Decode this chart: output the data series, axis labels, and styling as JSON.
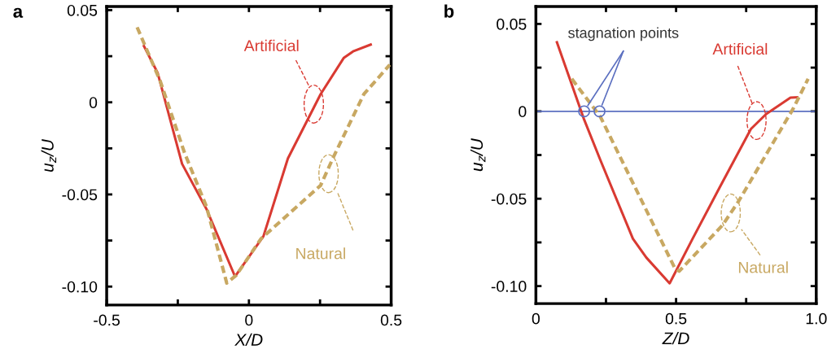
{
  "chart_data": [
    {
      "type": "line",
      "title": "a",
      "xlabel": "X/D",
      "ylabel": "u$_{z}$/U",
      "xlim": [
        -0.5,
        0.5
      ],
      "xticks": [
        -0.5,
        {
          "value": -0.25,
          "label": null
        },
        0,
        {
          "value": 0.25,
          "label": null
        },
        0.5
      ],
      "ylim": [
        -0.11,
        0.052
      ],
      "yticks": [
        {
          "value": -0.1,
          "label": "-0.10"
        },
        {
          "value": -0.075,
          "label": null
        },
        -0.05,
        {
          "value": -0.025,
          "label": null
        },
        0,
        {
          "value": 0.025,
          "label": null
        },
        0.05
      ],
      "grid": false,
      "legend": false,
      "series": [
        {
          "color": "#d93a32",
          "line_style": "solid",
          "x": [
            -0.369,
            -0.321,
            -0.235,
            -0.149,
            -0.049,
            0.051,
            0.137,
            0.252,
            0.333,
            0.366,
            0.428
          ],
          "values": [
            0.0305,
            0.016,
            -0.0334,
            -0.058,
            -0.0945,
            -0.0727,
            -0.0305,
            0.0044,
            0.024,
            0.0276,
            0.0313
          ]
        },
        {
          "color": "#c8a862",
          "line_style": "dashed",
          "x": [
            -0.393,
            -0.312,
            -0.226,
            -0.149,
            -0.078,
            -0.044,
            0.042,
            0.252,
            0.299,
            0.404,
            0.495
          ],
          "values": [
            0.0407,
            0.0116,
            -0.0276,
            -0.0567,
            -0.0981,
            -0.0938,
            -0.0741,
            -0.0451,
            -0.0291,
            0.0044,
            0.0203
          ]
        }
      ],
      "annotations": [
        "Artificial",
        "Natural"
      ]
    },
    {
      "type": "line",
      "title": "b",
      "xlabel": "Z/D",
      "ylabel": "u$_{z}$/U",
      "xlim": [
        0,
        1.0
      ],
      "xticks": [
        0,
        {
          "value": 0.25,
          "label": null
        },
        0.5,
        {
          "value": 0.75,
          "label": null
        },
        {
          "value": 1.0,
          "label": "1.0"
        }
      ],
      "ylim": [
        -0.11,
        0.06
      ],
      "yticks": [
        {
          "value": -0.1,
          "label": "-0.10"
        },
        {
          "value": -0.075,
          "label": null
        },
        -0.05,
        {
          "value": -0.025,
          "label": null
        },
        0,
        {
          "value": 0.025,
          "label": null
        },
        0.05
      ],
      "grid": false,
      "legend": false,
      "ref_lines": [
        {
          "axis": "y",
          "value": 0,
          "label": null,
          "color": "#5b6fc0"
        }
      ],
      "series": [
        {
          "color": "#d93a32",
          "line_style": "solid",
          "x": [
            0.075,
            0.172,
            0.23,
            0.346,
            0.394,
            0.477,
            0.559,
            0.656,
            0.767,
            0.821,
            0.908,
            0.932
          ],
          "values": [
            0.0395,
            -0.0047,
            -0.0279,
            -0.0729,
            -0.0837,
            -0.0984,
            -0.0729,
            -0.0434,
            -0.0101,
            -0.0016,
            0.0078,
            0.008
          ]
        },
        {
          "color": "#c8a862",
          "line_style": "dashed",
          "x": [
            0.128,
            0.23,
            0.496,
            0.511,
            0.666,
            0.724,
            0.918,
            0.971
          ],
          "values": [
            0.0186,
            -0.0031,
            -0.0899,
            -0.0915,
            -0.0651,
            -0.0512,
            0.0016,
            0.0186
          ]
        },
        {
          "type": "scatter",
          "color": "#5b6fc0",
          "marker": "circle",
          "x": [
            0.172,
            0.227
          ],
          "values": [
            0,
            0
          ]
        }
      ],
      "annotations": [
        {
          "text": "stagnation points",
          "x": 0.172,
          "y": 0
        },
        "Artificial",
        "Natural"
      ]
    }
  ]
}
